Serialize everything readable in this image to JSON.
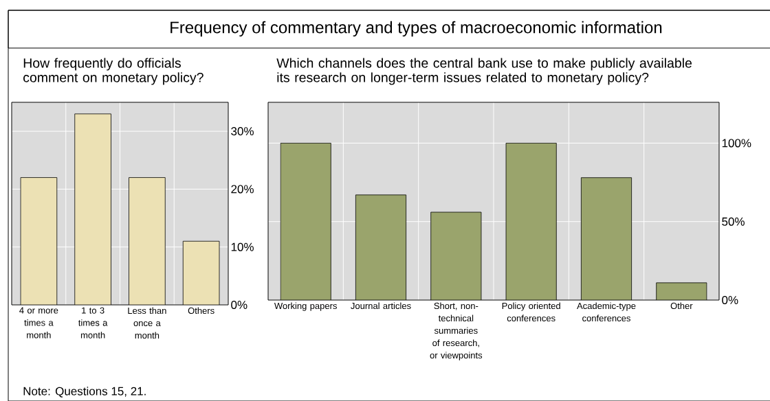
{
  "chart_data": [
    {
      "type": "bar",
      "title": "Frequency of commentary and types of macroeconomic information",
      "subtitle": "How frequently do officials comment on monetary policy?",
      "categories": [
        "4 or more times a month",
        "1 to 3 times a month",
        "Less than once a month",
        "Others"
      ],
      "values": [
        22,
        33,
        22,
        11
      ],
      "color": "#ece1b4",
      "ylim": [
        0,
        35
      ],
      "yticks": [
        {
          "value": 0,
          "label": "0%"
        },
        {
          "value": 10,
          "label": "10%"
        },
        {
          "value": 20,
          "label": "20%"
        },
        {
          "value": 30,
          "label": "30%"
        }
      ],
      "grid": true,
      "annotations": [
        "Note: Questions 15, 21."
      ]
    },
    {
      "type": "bar",
      "title": "Which channels does the central bank use to make publicly available its research on longer-term issues related to monetary policy?",
      "categories": [
        "Working papers",
        "Journal articles",
        "Short, non-technical summaries of research, or viewpoints",
        "Policy oriented conferences",
        "Academic-type conferences",
        "Other"
      ],
      "values": [
        100,
        67,
        56,
        100,
        78,
        11
      ],
      "color": "#9aa46c",
      "ylim": [
        0,
        126
      ],
      "yticks": [
        {
          "value": 0,
          "label": "0%"
        },
        {
          "value": 50,
          "label": "50%"
        },
        {
          "value": 100,
          "label": "100%"
        }
      ],
      "grid": true
    }
  ]
}
